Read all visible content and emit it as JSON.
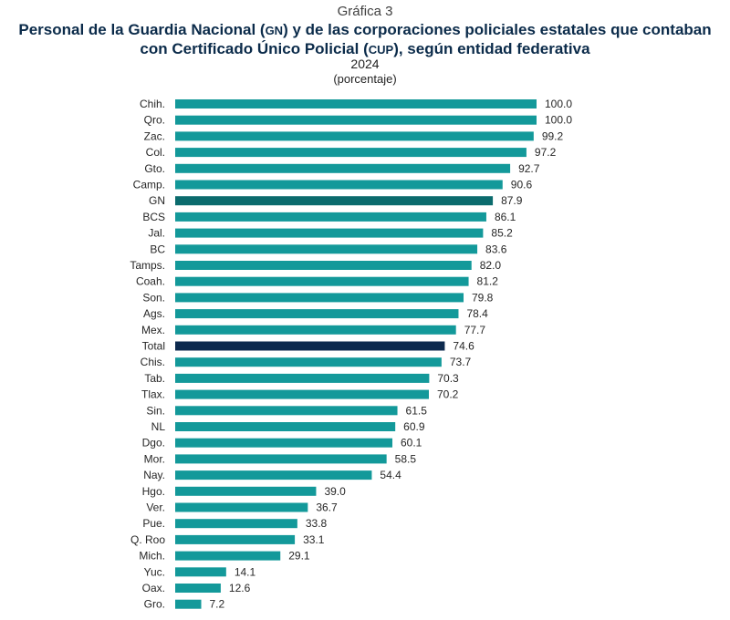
{
  "header": {
    "kicker": "Gráfica 3",
    "title_line1_a": "Personal de la Guardia Nacional (",
    "title_line1_abbr1": "GN",
    "title_line1_b": ") y de las corporaciones policiales estatales que contaban",
    "title_line2_a": "con Certificado Único Policial (",
    "title_line2_abbr": "CUP",
    "title_line2_b": "), según entidad federativa",
    "year": "2024",
    "unit": "(porcentaje)"
  },
  "colors": {
    "default_bar": "#13999a",
    "gn_bar": "#0b6b6d",
    "total_bar": "#0d2a4e"
  },
  "chart_data": {
    "type": "bar",
    "orientation": "horizontal",
    "title": "Personal de la Guardia Nacional (GN) y de las corporaciones policiales estatales que contaban con Certificado Único Policial (CUP), según entidad federativa",
    "subtitle": "2024",
    "unit": "(porcentaje)",
    "xlim": [
      0,
      100
    ],
    "grid": false,
    "categories": [
      "Chih.",
      "Qro.",
      "Zac.",
      "Col.",
      "Gto.",
      "Camp.",
      "GN",
      "BCS",
      "Jal.",
      "BC",
      "Tamps.",
      "Coah.",
      "Son.",
      "Ags.",
      "Mex.",
      "Total",
      "Chis.",
      "Tab.",
      "Tlax.",
      "Sin.",
      "NL",
      "Dgo.",
      "Mor.",
      "Nay.",
      "Hgo.",
      "Ver.",
      "Pue.",
      "Q. Roo",
      "Mich.",
      "Yuc.",
      "Oax.",
      "Gro."
    ],
    "values": [
      100.0,
      100.0,
      99.2,
      97.2,
      92.7,
      90.6,
      87.9,
      86.1,
      85.2,
      83.6,
      82.0,
      81.2,
      79.8,
      78.4,
      77.7,
      74.6,
      73.7,
      70.3,
      70.2,
      61.5,
      60.9,
      60.1,
      58.5,
      54.4,
      39.0,
      36.7,
      33.8,
      33.1,
      29.1,
      14.1,
      12.6,
      7.2
    ],
    "value_labels": [
      "100.0",
      "100.0",
      "99.2",
      "97.2",
      "92.7",
      "90.6",
      "87.9",
      "86.1",
      "85.2",
      "83.6",
      "82.0",
      "81.2",
      "79.8",
      "78.4",
      "77.7",
      "74.6",
      "73.7",
      "70.3",
      "70.2",
      "61.5",
      "60.9",
      "60.1",
      "58.5",
      "54.4",
      "39.0",
      "36.7",
      "33.8",
      "33.1",
      "29.1",
      "14.1",
      "12.6",
      "7.2"
    ],
    "highlight": {
      "GN": "gn_bar",
      "Total": "total_bar"
    }
  }
}
